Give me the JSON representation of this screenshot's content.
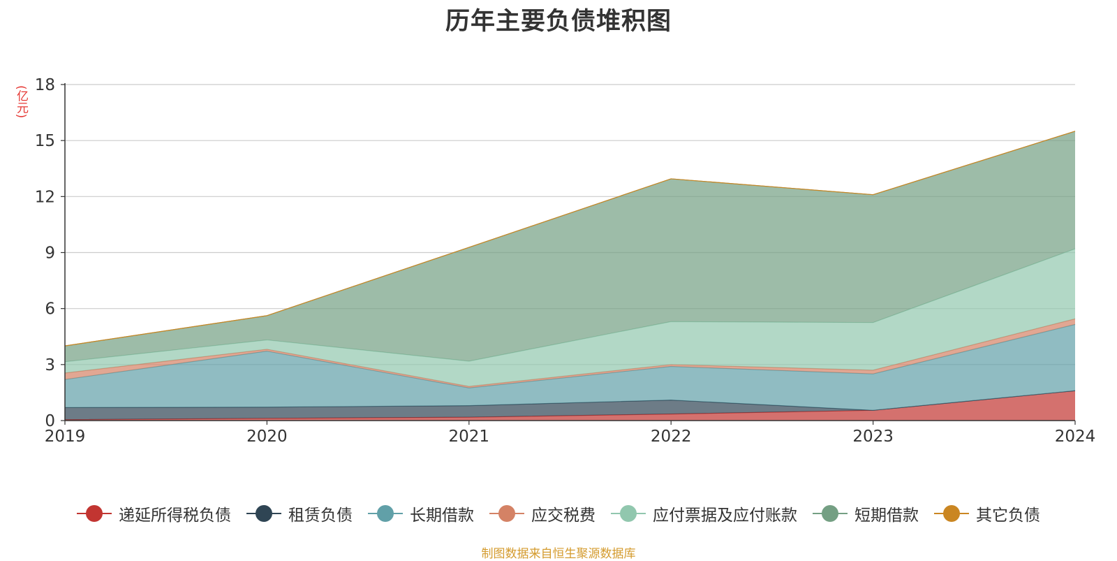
{
  "title": "历年主要负债堆积图",
  "unit_label": "(亿元)",
  "footer": "制图数据来自恒生聚源数据库",
  "chart_data": {
    "type": "area",
    "stacked": true,
    "x": [
      "2019",
      "2020",
      "2021",
      "2022",
      "2023",
      "2024"
    ],
    "ylim": [
      0,
      18
    ],
    "yticks": [
      0,
      3,
      6,
      9,
      12,
      15,
      18
    ],
    "grid": true,
    "legend_position": "bottom",
    "series": [
      {
        "name": "递延所得税负债",
        "color": "#c23531",
        "values": [
          0.05,
          0.12,
          0.18,
          0.35,
          0.55,
          1.6
        ]
      },
      {
        "name": "租赁负债",
        "color": "#2f4554",
        "values": [
          0.65,
          0.6,
          0.62,
          0.75,
          0.0,
          0.0
        ]
      },
      {
        "name": "长期借款",
        "color": "#61a0a8",
        "values": [
          1.5,
          3.0,
          0.95,
          1.8,
          1.95,
          3.55
        ]
      },
      {
        "name": "应交税费",
        "color": "#d48265",
        "values": [
          0.35,
          0.1,
          0.08,
          0.1,
          0.2,
          0.3
        ]
      },
      {
        "name": "应付票据及应付账款",
        "color": "#91c7ae",
        "values": [
          0.6,
          0.5,
          1.35,
          2.3,
          2.55,
          3.75
        ]
      },
      {
        "name": "短期借款",
        "color": "#749f83",
        "values": [
          0.85,
          1.3,
          6.1,
          7.65,
          6.85,
          6.3
        ]
      },
      {
        "name": "其它负债",
        "color": "#ca8622",
        "values": [
          0.0,
          0.0,
          0.0,
          0.0,
          0.0,
          0.0
        ]
      }
    ]
  }
}
